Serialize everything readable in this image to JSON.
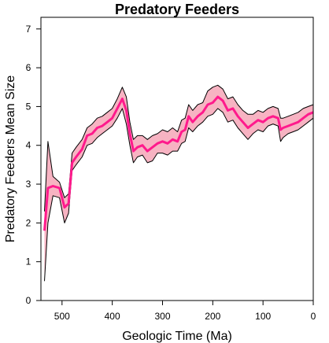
{
  "chart_data": {
    "type": "line",
    "title": "Predatory Feeders",
    "xlabel": "Geologic Time (Ma)",
    "ylabel": "Predatory Feeders Mean Size",
    "xlim": [
      542,
      0
    ],
    "ylim": [
      0,
      7.3
    ],
    "xticks": [
      "500",
      "400",
      "300",
      "200",
      "100",
      "0"
    ],
    "yticks": [
      "0",
      "1",
      "2",
      "3",
      "4",
      "5",
      "6",
      "7"
    ],
    "colors": {
      "line": "#ff1a8c",
      "band_fill": "#f7b3c2",
      "band_edge": "#000000"
    },
    "series": [
      {
        "x": [
          535,
          528,
          518,
          505,
          495,
          487,
          480,
          472,
          460,
          450,
          440,
          430,
          420,
          410,
          400,
          390,
          380,
          372,
          365,
          358,
          350,
          340,
          330,
          320,
          310,
          300,
          290,
          280,
          270,
          262,
          255,
          248,
          240,
          230,
          220,
          210,
          200,
          190,
          180,
          170,
          160,
          150,
          140,
          130,
          120,
          110,
          100,
          90,
          80,
          70,
          65,
          60,
          50,
          40,
          30,
          20,
          10,
          0
        ],
        "mean": [
          1.8,
          2.9,
          2.95,
          2.9,
          2.4,
          2.5,
          3.55,
          3.7,
          3.9,
          4.25,
          4.3,
          4.45,
          4.5,
          4.6,
          4.7,
          4.95,
          5.2,
          4.9,
          4.3,
          3.85,
          3.95,
          4.0,
          3.85,
          3.95,
          4.05,
          4.1,
          4.05,
          4.15,
          4.1,
          4.35,
          4.4,
          4.75,
          4.6,
          4.75,
          4.85,
          5.05,
          5.1,
          5.25,
          5.15,
          4.9,
          4.95,
          4.75,
          4.6,
          4.45,
          4.55,
          4.65,
          4.6,
          4.7,
          4.75,
          4.7,
          4.4,
          4.45,
          4.5,
          4.55,
          4.6,
          4.7,
          4.8,
          4.85
        ],
        "lower": [
          0.5,
          2.0,
          2.7,
          2.65,
          2.0,
          2.25,
          3.35,
          3.5,
          3.7,
          4.0,
          4.05,
          4.2,
          4.3,
          4.4,
          4.5,
          4.7,
          4.95,
          4.55,
          4.0,
          3.55,
          3.7,
          3.75,
          3.55,
          3.6,
          3.8,
          3.8,
          3.75,
          3.85,
          3.85,
          4.05,
          4.1,
          4.45,
          4.35,
          4.5,
          4.6,
          4.75,
          4.8,
          4.95,
          4.85,
          4.6,
          4.65,
          4.45,
          4.3,
          4.15,
          4.3,
          4.4,
          4.35,
          4.5,
          4.55,
          4.5,
          4.1,
          4.2,
          4.3,
          4.35,
          4.4,
          4.5,
          4.6,
          4.7
        ],
        "upper": [
          2.3,
          4.1,
          3.2,
          3.05,
          2.65,
          2.75,
          3.8,
          3.95,
          4.15,
          4.45,
          4.55,
          4.7,
          4.75,
          4.85,
          4.95,
          5.2,
          5.5,
          5.25,
          4.6,
          4.15,
          4.25,
          4.25,
          4.15,
          4.25,
          4.3,
          4.4,
          4.35,
          4.45,
          4.35,
          4.65,
          4.7,
          5.05,
          4.9,
          5.05,
          5.1,
          5.4,
          5.5,
          5.55,
          5.45,
          5.2,
          5.25,
          5.05,
          4.9,
          4.8,
          4.8,
          4.9,
          4.85,
          4.95,
          5.0,
          4.95,
          4.7,
          4.7,
          4.75,
          4.8,
          4.85,
          4.95,
          5.0,
          5.05
        ]
      }
    ]
  }
}
